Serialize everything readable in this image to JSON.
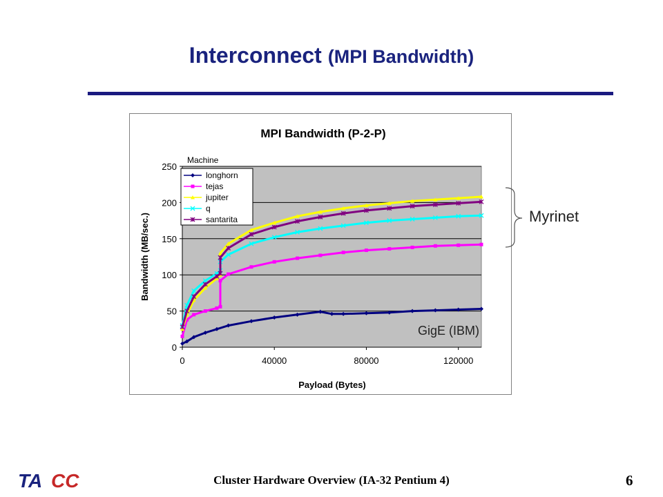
{
  "slide": {
    "title_main": "Interconnect",
    "title_paren": "(MPI Bandwidth)",
    "footer": "Cluster Hardware Overview (IA-32 Pentium 4)",
    "page_number": "6",
    "logo_text": "TACC",
    "annotation_myrinet": "Myrinet",
    "annotation_gige": "GigE (IBM)"
  },
  "colors": {
    "title": "#1a237e",
    "plot_bg": "#c0c0c0",
    "longhorn": "#000080",
    "tejas": "#ff00ff",
    "jupiter": "#ffff00",
    "q": "#00ffff",
    "santarita": "#800080"
  },
  "chart_data": {
    "type": "line",
    "title": "MPI Bandwidth (P-2-P)",
    "xlabel": "Payload (Bytes)",
    "ylabel": "Bandwidth (MB/sec.)",
    "xlim": [
      0,
      130000
    ],
    "ylim": [
      0,
      250
    ],
    "xticks": [
      0,
      40000,
      80000,
      120000
    ],
    "yticks": [
      0,
      50,
      100,
      150,
      200,
      250
    ],
    "grid": "horizontal",
    "legend": {
      "title": "Machine",
      "placement": "top-left"
    },
    "series": [
      {
        "name": "longhorn",
        "marker": "diamond",
        "x": [
          0,
          2000,
          5000,
          10000,
          15000,
          20000,
          30000,
          40000,
          50000,
          60000,
          65000,
          70000,
          80000,
          90000,
          100000,
          110000,
          120000,
          130000
        ],
        "values": [
          5,
          8,
          14,
          20,
          25,
          30,
          36,
          41,
          45,
          49,
          46,
          46,
          47,
          48,
          50,
          51,
          52,
          53
        ]
      },
      {
        "name": "tejas",
        "marker": "square",
        "x": [
          0,
          2000,
          5000,
          10000,
          15000,
          16500,
          16501,
          20000,
          30000,
          40000,
          50000,
          60000,
          70000,
          80000,
          90000,
          100000,
          110000,
          120000,
          130000
        ],
        "values": [
          15,
          38,
          45,
          50,
          54,
          56,
          92,
          101,
          111,
          118,
          123,
          127,
          131,
          134,
          136,
          138,
          140,
          141,
          142
        ]
      },
      {
        "name": "jupiter",
        "marker": "triangle",
        "x": [
          0,
          2000,
          5000,
          10000,
          15000,
          16500,
          16501,
          20000,
          30000,
          40000,
          50000,
          60000,
          70000,
          80000,
          90000,
          100000,
          110000,
          120000,
          130000
        ],
        "values": [
          25,
          45,
          65,
          82,
          95,
          100,
          130,
          143,
          162,
          172,
          181,
          187,
          192,
          196,
          199,
          202,
          204,
          206,
          208
        ]
      },
      {
        "name": "q",
        "marker": "x",
        "x": [
          0,
          2000,
          5000,
          10000,
          15000,
          16500,
          16501,
          20000,
          30000,
          40000,
          50000,
          60000,
          70000,
          80000,
          90000,
          100000,
          110000,
          120000,
          130000
        ],
        "values": [
          30,
          58,
          78,
          92,
          102,
          106,
          118,
          128,
          143,
          152,
          159,
          164,
          168,
          172,
          175,
          177,
          179,
          181,
          182
        ]
      },
      {
        "name": "santarita",
        "marker": "star",
        "x": [
          0,
          2000,
          5000,
          10000,
          15000,
          16500,
          16501,
          20000,
          30000,
          40000,
          50000,
          60000,
          70000,
          80000,
          90000,
          100000,
          110000,
          120000,
          130000
        ],
        "values": [
          28,
          50,
          70,
          87,
          98,
          102,
          124,
          137,
          156,
          166,
          174,
          180,
          185,
          189,
          192,
          195,
          197,
          199,
          201
        ]
      }
    ]
  }
}
